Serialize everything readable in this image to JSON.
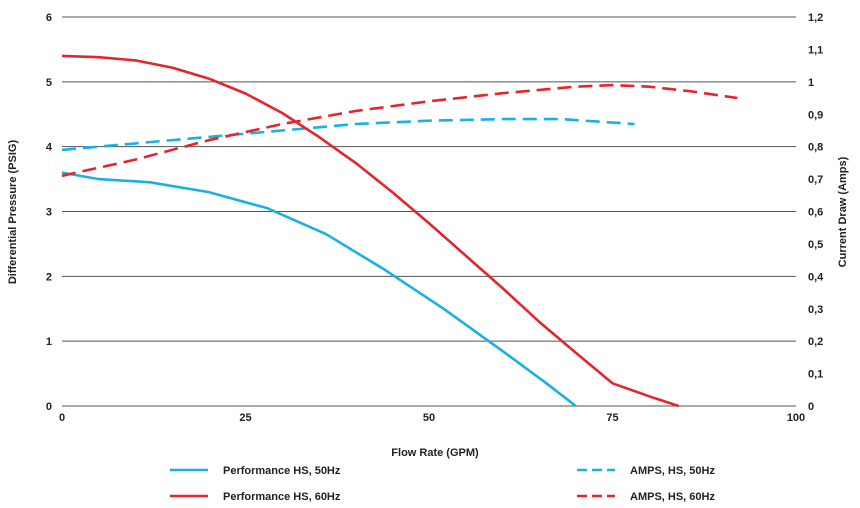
{
  "chart_data": {
    "type": "line",
    "xlabel": "Flow Rate (GPM)",
    "ylabel": "Differential Pressure (PSIG)",
    "y2label": "Current Draw (Amps)",
    "xlim": [
      0,
      100
    ],
    "ylim": [
      0,
      6
    ],
    "y2lim": [
      0,
      1.2
    ],
    "x_ticks": [
      "0",
      "25",
      "50",
      "75",
      "100"
    ],
    "y_ticks": [
      "0",
      "1",
      "2",
      "3",
      "4",
      "5",
      "6"
    ],
    "y2_ticks": [
      "0",
      "0,1",
      "0,2",
      "0,3",
      "0,4",
      "0,5",
      "0,6",
      "0,7",
      "0,8",
      "0,9",
      "1",
      "1,1",
      "1,2"
    ],
    "grid": true,
    "legend_position": "bottom",
    "series": [
      {
        "name": "Performance HS, 50Hz",
        "axis": "left",
        "style": "solid",
        "color": "#1ab0e4",
        "x": [
          0,
          5,
          12,
          20,
          28,
          36,
          44,
          52,
          60,
          66,
          70
        ],
        "y": [
          3.6,
          3.5,
          3.45,
          3.3,
          3.05,
          2.65,
          2.1,
          1.5,
          0.85,
          0.35,
          0
        ]
      },
      {
        "name": "AMPS, HS, 50Hz",
        "axis": "right",
        "style": "dashed",
        "color": "#1ab0e4",
        "x": [
          0,
          10,
          20,
          30,
          40,
          50,
          60,
          68,
          78
        ],
        "y": [
          0.79,
          0.81,
          0.83,
          0.85,
          0.87,
          0.88,
          0.885,
          0.885,
          0.87
        ]
      },
      {
        "name": "Performance HS, 60Hz",
        "axis": "left",
        "style": "solid",
        "color": "#e2262b",
        "x": [
          0,
          5,
          10,
          15,
          20,
          25,
          30,
          35,
          40,
          45,
          50,
          55,
          60,
          65,
          70,
          75,
          80,
          84
        ],
        "y": [
          5.4,
          5.38,
          5.33,
          5.22,
          5.05,
          4.82,
          4.52,
          4.15,
          3.75,
          3.3,
          2.82,
          2.32,
          1.82,
          1.3,
          0.82,
          0.35,
          0.15,
          0
        ]
      },
      {
        "name": "AMPS, HS, 60Hz",
        "axis": "right",
        "style": "dashed",
        "color": "#e2262b",
        "x": [
          0,
          10,
          20,
          30,
          40,
          50,
          60,
          70,
          75,
          80,
          86,
          92
        ],
        "y": [
          0.71,
          0.76,
          0.82,
          0.87,
          0.91,
          0.94,
          0.965,
          0.985,
          0.99,
          0.985,
          0.97,
          0.95
        ]
      }
    ]
  }
}
